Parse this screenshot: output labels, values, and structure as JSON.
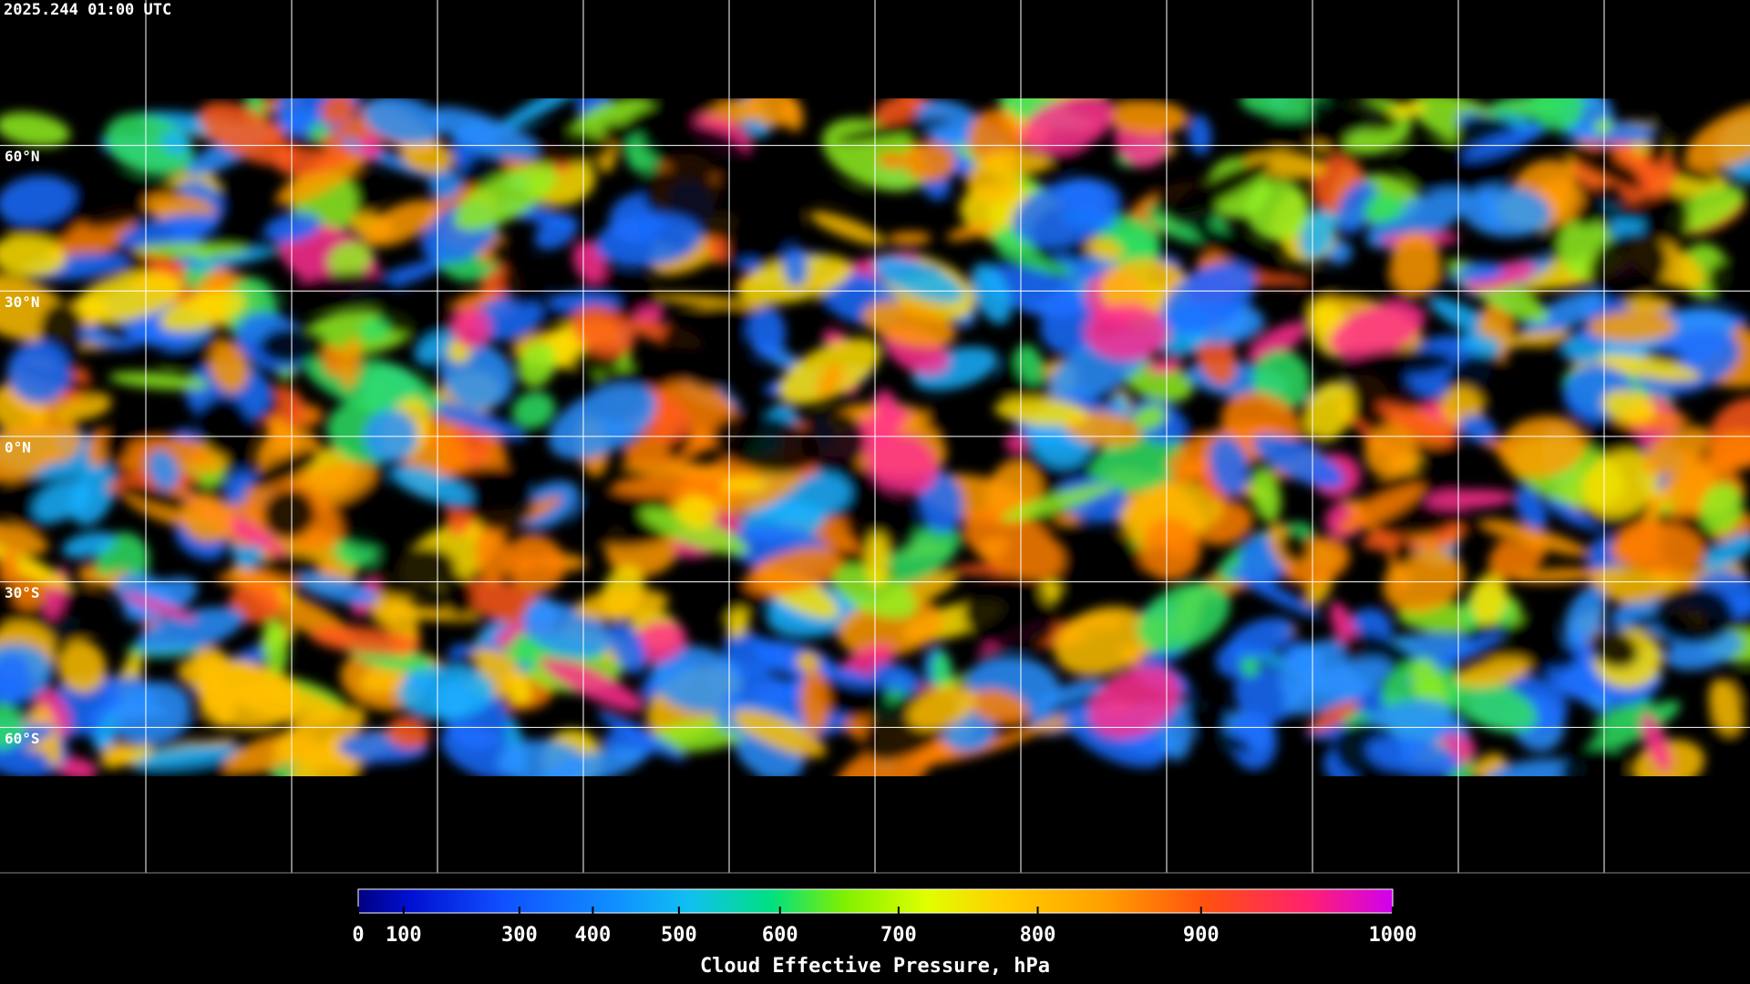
{
  "header": {
    "timestamp": "2025.244 01:00 UTC"
  },
  "map": {
    "lat_labels": [
      "60°N",
      "30°N",
      "0°N",
      "30°S",
      "60°S"
    ]
  },
  "colorbar": {
    "range": [
      0,
      1000
    ],
    "ticks": [
      0,
      100,
      300,
      400,
      500,
      600,
      700,
      800,
      900,
      1000
    ],
    "label": "Cloud Effective Pressure, hPa"
  }
}
